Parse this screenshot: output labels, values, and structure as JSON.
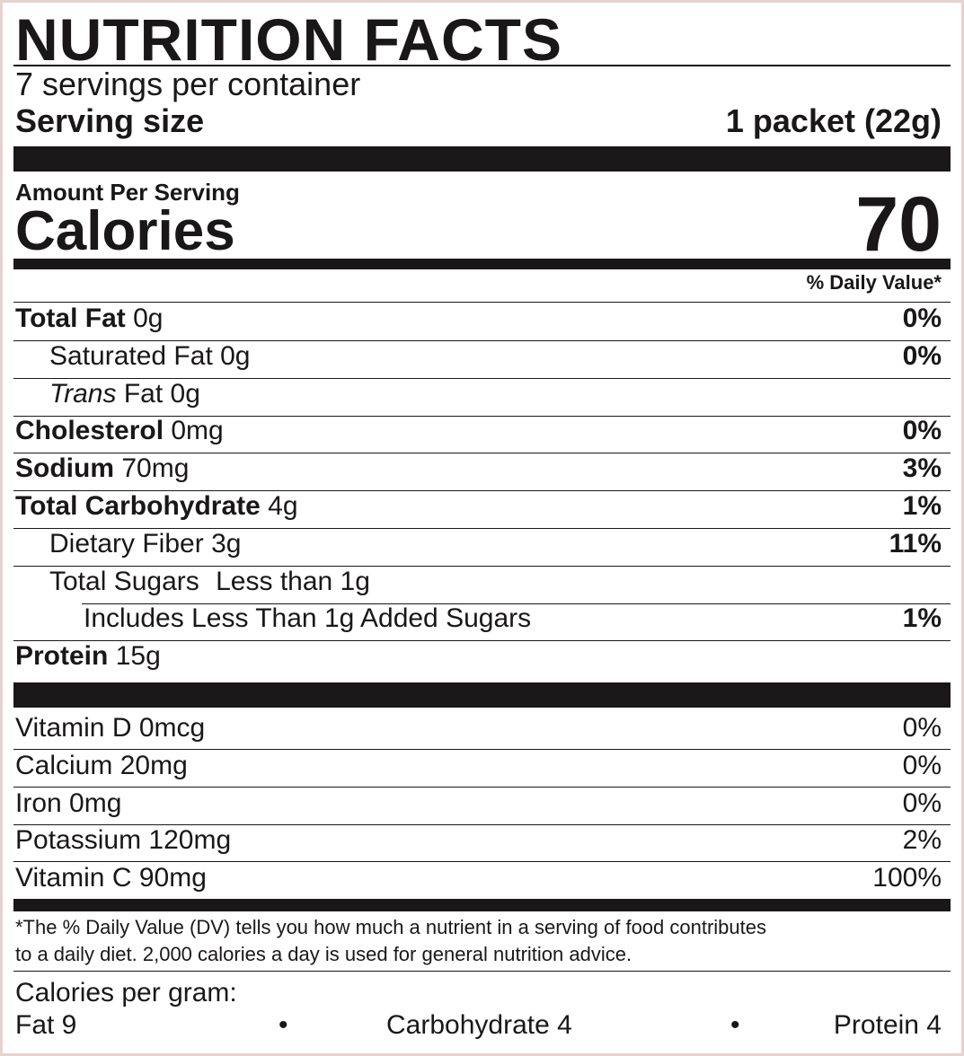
{
  "title": "NUTRITION FACTS",
  "servings": "7 servings per container",
  "serving_size": {
    "label": "Serving size",
    "value": "1 packet (22g)"
  },
  "amount_per_serving": "Amount Per Serving",
  "calories": {
    "label": "Calories",
    "value": "70"
  },
  "daily_value_header": "% Daily Value*",
  "nutrients": [
    {
      "name": "Total Fat",
      "amount": "0g",
      "dv": "0%"
    },
    {
      "name": "Saturated Fat",
      "amount": "0g",
      "dv": "0%"
    },
    {
      "prefix": "Trans",
      "name": "Fat",
      "amount": "0g"
    },
    {
      "name": "Cholesterol",
      "amount": "0mg",
      "dv": "0%"
    },
    {
      "name": "Sodium",
      "amount": "70mg",
      "dv": "3%"
    },
    {
      "name": "Total Carbohydrate",
      "amount": "4g",
      "dv": "1%"
    },
    {
      "name": "Dietary Fiber",
      "amount": "3g",
      "dv": "11%"
    },
    {
      "name": "Total Sugars",
      "amount": "Less than 1g"
    },
    {
      "name": "Includes Less Than 1g Added Sugars",
      "dv": "1%"
    },
    {
      "name": "Protein",
      "amount": "15g"
    }
  ],
  "vitamins": [
    {
      "name": "Vitamin D",
      "amount": "0mcg",
      "dv": "0%"
    },
    {
      "name": "Calcium",
      "amount": "20mg",
      "dv": "0%"
    },
    {
      "name": "Iron",
      "amount": "0mg",
      "dv": "0%"
    },
    {
      "name": "Potassium",
      "amount": "120mg",
      "dv": "2%"
    },
    {
      "name": "Vitamin C",
      "amount": "90mg",
      "dv": "100%"
    }
  ],
  "footnote": [
    "*The % Daily Value (DV) tells you how much a nutrient in a serving of food contributes",
    "to a daily diet. 2,000 calories a day is used for general nutrition advice."
  ],
  "calories_per_gram": {
    "label": "Calories per gram:",
    "items": [
      "Fat 9",
      "Carbohydrate 4",
      "Protein 4"
    ]
  }
}
